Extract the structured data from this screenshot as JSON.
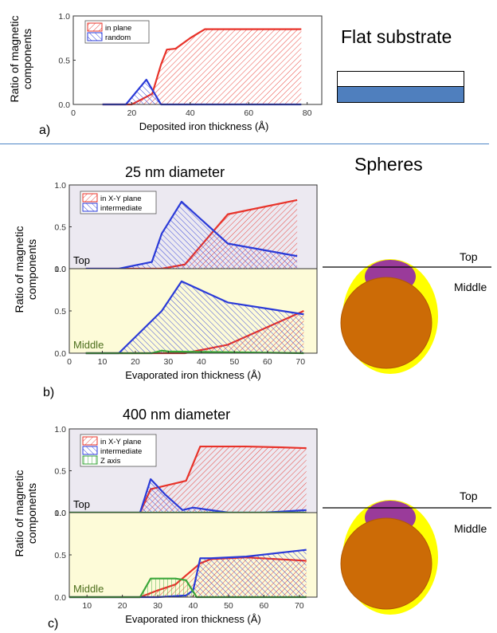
{
  "panel_a": {
    "letter": "a)",
    "title": "Flat substrate",
    "ylabel_line1": "Ratio of magnetic",
    "ylabel_line2": "components",
    "xlabel": "Deposited iron thickness (Å)"
  },
  "panel_b": {
    "letter": "b)",
    "title": "25 nm diameter",
    "ylabel_line1": "Ratio of magnetic",
    "ylabel_line2": "components",
    "xlabel": "Evaporated iron thickness (Å)",
    "top_label": "Top",
    "middle_label": "Middle"
  },
  "panel_c": {
    "letter": "c)",
    "title": "400 nm diameter",
    "ylabel_line1": "Ratio of magnetic",
    "ylabel_line2": "components",
    "xlabel": "Evaporated iron thickness (Å)",
    "top_label": "Top",
    "middle_label": "Middle"
  },
  "spheres_title": "Spheres",
  "diagram_b": {
    "top": "Top",
    "middle": "Middle"
  },
  "diagram_c": {
    "top": "Top",
    "middle": "Middle"
  },
  "colors": {
    "red": "#e8332a",
    "blue": "#2a3ad8",
    "green": "#3aa63a",
    "purple": "#a020a0",
    "top_bg": "#ece9f1",
    "middle_bg": "#fdfbd8",
    "sphere": "#cc6b06",
    "cap": "#9a3b9a",
    "shell": "#ffff00",
    "substrate": "#4f7fbe",
    "divider": "#4f86c6"
  },
  "chart_data": [
    {
      "id": "a",
      "type": "area",
      "xlabel": "Deposited iron thickness (Å)",
      "ylabel": "Ratio of magnetic components",
      "xlim": [
        0,
        85
      ],
      "ylim": [
        0,
        1.0
      ],
      "xticks": [
        0,
        20,
        40,
        60,
        80
      ],
      "yticks": [
        0.0,
        0.5,
        1.0
      ],
      "legend": [
        "in plane",
        "random"
      ],
      "series": [
        {
          "name": "in plane",
          "x": [
            10,
            20,
            27,
            30,
            32,
            35,
            40,
            45,
            50,
            60,
            70,
            78
          ],
          "y": [
            0,
            0,
            0.12,
            0.45,
            0.62,
            0.63,
            0.75,
            0.85,
            0.85,
            0.85,
            0.85,
            0.85
          ]
        },
        {
          "name": "random",
          "x": [
            10,
            18,
            25,
            30,
            40,
            78
          ],
          "y": [
            0,
            0,
            0.28,
            0,
            0,
            0
          ]
        }
      ]
    },
    {
      "id": "b_top",
      "type": "area",
      "xlim": [
        0,
        75
      ],
      "ylim": [
        0,
        1.0
      ],
      "yticks": [
        0.0,
        0.5,
        1.0
      ],
      "legend": [
        "in X-Y plane",
        "intermediate"
      ],
      "series": [
        {
          "name": "in X-Y plane",
          "x": [
            5,
            25,
            28,
            35,
            48,
            69
          ],
          "y": [
            0,
            0,
            0,
            0.05,
            0.65,
            0.82
          ]
        },
        {
          "name": "intermediate",
          "x": [
            5,
            15,
            25,
            28,
            34,
            48,
            69
          ],
          "y": [
            0,
            0,
            0.08,
            0.42,
            0.8,
            0.3,
            0.15
          ]
        }
      ]
    },
    {
      "id": "b_middle",
      "type": "area",
      "xlabel": "Evaporated iron thickness (Å)",
      "xlim": [
        0,
        75
      ],
      "ylim": [
        0,
        1.0
      ],
      "xticks": [
        0,
        10,
        20,
        30,
        40,
        50,
        60,
        70
      ],
      "yticks": [
        0.0,
        0.5,
        1.0
      ],
      "series": [
        {
          "name": "in X-Y plane",
          "x": [
            5,
            35,
            48,
            71
          ],
          "y": [
            0,
            0,
            0.1,
            0.5
          ]
        },
        {
          "name": "intermediate",
          "x": [
            5,
            15,
            28,
            34,
            48,
            71
          ],
          "y": [
            0,
            0,
            0.5,
            0.85,
            0.6,
            0.46
          ]
        },
        {
          "name": "Z axis",
          "x": [
            5,
            25,
            28,
            30,
            71
          ],
          "y": [
            0,
            0,
            0.03,
            0.02,
            0
          ]
        }
      ]
    },
    {
      "id": "c_top",
      "type": "area",
      "xlim": [
        5,
        75
      ],
      "ylim": [
        0,
        1.0
      ],
      "yticks": [
        0.0,
        0.5,
        1.0
      ],
      "legend": [
        "in X-Y plane",
        "intermediate",
        "Z axis"
      ],
      "series": [
        {
          "name": "in X-Y plane",
          "x": [
            5,
            25,
            28,
            36,
            38,
            42,
            45,
            55,
            65,
            72
          ],
          "y": [
            0,
            0,
            0.28,
            0.36,
            0.38,
            0.79,
            0.79,
            0.79,
            0.78,
            0.77
          ]
        },
        {
          "name": "intermediate",
          "x": [
            5,
            25,
            28,
            32,
            37,
            40,
            45,
            50,
            60,
            72
          ],
          "y": [
            0,
            0,
            0.4,
            0.22,
            0.03,
            0.06,
            0.03,
            0,
            0,
            0.03
          ]
        },
        {
          "name": "Z axis",
          "x": [
            5,
            72
          ],
          "y": [
            0,
            0
          ]
        }
      ]
    },
    {
      "id": "c_middle",
      "type": "area",
      "xlabel": "Evaporated iron thickness (Å)",
      "xlim": [
        5,
        75
      ],
      "ylim": [
        0,
        1.0
      ],
      "xticks": [
        10,
        20,
        30,
        40,
        50,
        60,
        70
      ],
      "yticks": [
        0.0,
        0.5,
        1.0
      ],
      "series": [
        {
          "name": "in X-Y plane",
          "x": [
            5,
            25,
            30,
            35,
            42,
            45,
            55,
            72
          ],
          "y": [
            0,
            0,
            0.08,
            0.15,
            0.4,
            0.45,
            0.47,
            0.43
          ]
        },
        {
          "name": "intermediate",
          "x": [
            5,
            25,
            30,
            38,
            40,
            42,
            45,
            55,
            72
          ],
          "y": [
            0,
            0,
            0,
            0.02,
            0.08,
            0.46,
            0.46,
            0.48,
            0.56
          ]
        },
        {
          "name": "Z axis",
          "x": [
            5,
            25,
            28,
            35,
            38,
            41,
            72
          ],
          "y": [
            0,
            0,
            0.22,
            0.22,
            0.2,
            0,
            0
          ]
        }
      ]
    }
  ]
}
